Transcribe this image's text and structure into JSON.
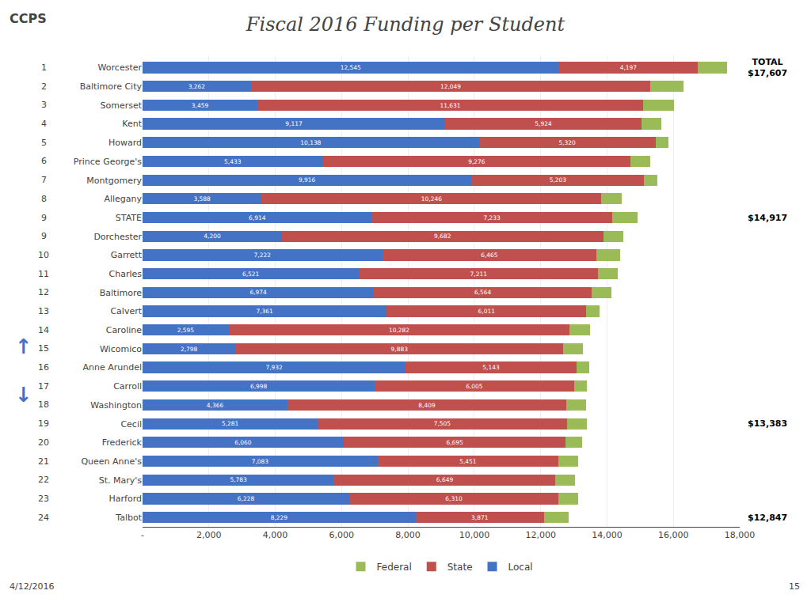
{
  "chart_data": {
    "type": "bar",
    "orientation": "horizontal",
    "stacked": true,
    "title": "Fiscal 2016 Funding per Student",
    "categories": [
      "Worcester",
      "Baltimore City",
      "Somerset",
      "Kent",
      "Howard",
      "Prince George's",
      "Montgomery",
      "Allegany",
      "STATE",
      "Dorchester",
      "Garrett",
      "Charles",
      "Baltimore",
      "Calvert",
      "Caroline",
      "Wicomico",
      "Anne Arundel",
      "Carroll",
      "Washington",
      "Cecil",
      "Frederick",
      "Queen Anne's",
      "St. Mary's",
      "Harford",
      "Talbot"
    ],
    "ranks": [
      "1",
      "2",
      "3",
      "4",
      "5",
      "6",
      "7",
      "8",
      "9",
      "9",
      "10",
      "11",
      "12",
      "13",
      "14",
      "15",
      "16",
      "17",
      "18",
      "19",
      "20",
      "21",
      "22",
      "23",
      "24"
    ],
    "series": [
      {
        "name": "Local",
        "color": "#4472C4",
        "data_labels": true,
        "values": [
          12545,
          3262,
          3459,
          9117,
          10138,
          5433,
          9916,
          3588,
          6914,
          4200,
          7222,
          6521,
          6974,
          7361,
          2595,
          2798,
          7932,
          6998,
          4366,
          5281,
          6060,
          7083,
          5783,
          6228,
          8229
        ],
        "value_labels": [
          "12,545",
          "3,262",
          "3,459",
          "9,117",
          "10,138",
          "5,433",
          "9,916",
          "3,588",
          "6,914",
          "4,200",
          "7,222",
          "6,521",
          "6,974",
          "7,361",
          "2,595",
          "2,798",
          "7,932",
          "6,998",
          "4,366",
          "5,281",
          "6,060",
          "7,083",
          "5,783",
          "6,228",
          "8,229"
        ]
      },
      {
        "name": "State",
        "color": "#C0504D",
        "data_labels": true,
        "values": [
          4197,
          12049,
          11631,
          5924,
          5320,
          9276,
          5203,
          10246,
          7233,
          9682,
          6465,
          7211,
          6564,
          6011,
          10282,
          9883,
          5143,
          6005,
          8409,
          7505,
          6695,
          5451,
          6649,
          6310,
          3871
        ],
        "value_labels": [
          "4,197",
          "12,049",
          "11,631",
          "5,924",
          "5,320",
          "9,276",
          "5,203",
          "10,246",
          "7,233",
          "9,682",
          "6,465",
          "7,211",
          "6,564",
          "6,011",
          "10,282",
          "9,883",
          "5,143",
          "6,005",
          "8,409",
          "7,505",
          "6,695",
          "5,451",
          "6,649",
          "6,310",
          "3,871"
        ]
      },
      {
        "name": "Federal",
        "color": "#9BBB59",
        "data_labels": false,
        "values": [
          865,
          1000,
          930,
          600,
          400,
          600,
          400,
          600,
          770,
          600,
          700,
          600,
          600,
          400,
          600,
          600,
          400,
          400,
          600,
          597,
          500,
          600,
          600,
          600,
          747
        ]
      }
    ],
    "xlim": [
      0,
      18000
    ],
    "xticks": [
      {
        "value": 0,
        "label": "-"
      },
      {
        "value": 2000,
        "label": "2,000"
      },
      {
        "value": 4000,
        "label": "4,000"
      },
      {
        "value": 6000,
        "label": "6,000"
      },
      {
        "value": 8000,
        "label": "8,000"
      },
      {
        "value": 10000,
        "label": "10,000"
      },
      {
        "value": 12000,
        "label": "12,000"
      },
      {
        "value": 14000,
        "label": "14,000"
      },
      {
        "value": 16000,
        "label": "16,000"
      },
      {
        "value": 18000,
        "label": "18,000"
      }
    ],
    "grid": true,
    "legend": "bottom",
    "annotations": [
      {
        "text": "TOTAL",
        "category": "Worcester"
      },
      {
        "text": "$17,607",
        "category": "Worcester"
      },
      {
        "text": "$14,917",
        "category": "STATE"
      },
      {
        "text": "$13,383",
        "category": "Cecil"
      },
      {
        "text": "$12,847",
        "category": "Talbot"
      },
      {
        "text": "CCPS"
      },
      {
        "text": "↑",
        "color": "#4472C4"
      },
      {
        "text": "↓",
        "color": "#4472C4"
      },
      {
        "text": "4/12/2016"
      },
      {
        "text": "15"
      }
    ]
  }
}
